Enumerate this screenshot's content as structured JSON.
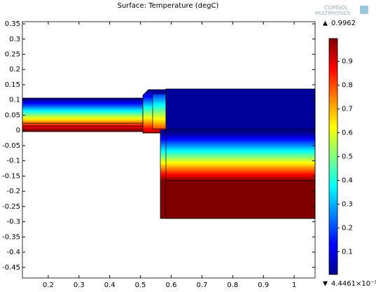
{
  "chart_data": {
    "type": "surface",
    "title": "Surface: Temperature (degC)",
    "logo": [
      "COMSOL",
      "MULTIPHYSICS"
    ],
    "xlim": [
      0.116,
      1.068
    ],
    "xticks": [
      0.2,
      0.3,
      0.4,
      0.5,
      0.6,
      0.7,
      0.8,
      0.9,
      1
    ],
    "ylim": [
      -0.485,
      0.357
    ],
    "yticks": [
      0.35,
      0.3,
      0.25,
      0.2,
      0.15,
      0.1,
      0.05,
      0,
      -0.05,
      -0.1,
      -0.15,
      -0.2,
      -0.25,
      -0.3,
      -0.35,
      -0.4,
      -0.45
    ],
    "max": 0.9962,
    "min": {
      "value": 0.0044461,
      "label": "4.4461×10⁻³"
    },
    "colorbar_ticks": [
      0.1,
      0.2,
      0.3,
      0.4,
      0.5,
      0.6,
      0.7,
      0.8,
      0.9
    ],
    "colormap": [
      "#00008f",
      "#0000ff",
      "#0080ff",
      "#00ffff",
      "#80ff80",
      "#ffff00",
      "#ff8000",
      "#ff0000",
      "#800000"
    ]
  }
}
